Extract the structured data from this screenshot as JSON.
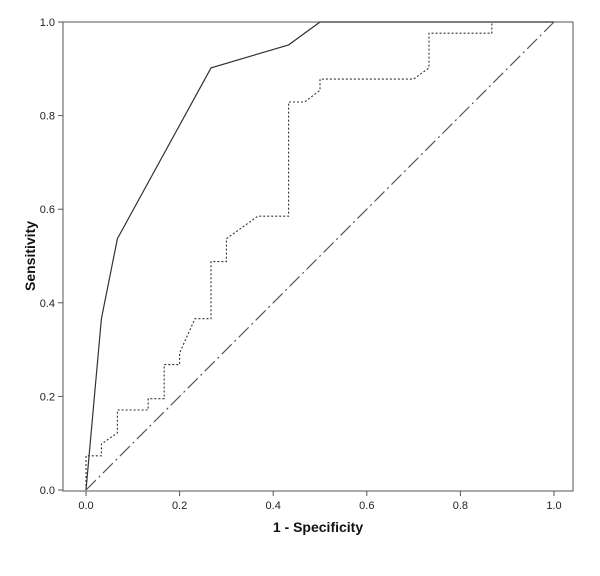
{
  "chart_data": {
    "type": "line",
    "title": "",
    "xlabel": "1 - Specificity",
    "ylabel": "Sensitivity",
    "xlim": [
      0.0,
      1.0
    ],
    "ylim": [
      0.0,
      1.0
    ],
    "x_ticks": [
      "0.0",
      "0.2",
      "0.4",
      "0.6",
      "0.8",
      "1.0"
    ],
    "y_ticks": [
      "0.0",
      "0.2",
      "0.4",
      "0.6",
      "0.8",
      "1.0"
    ],
    "grid": false,
    "legend": "none",
    "series": [
      {
        "style": "solid",
        "color": "#333333",
        "points": [
          [
            0.0,
            0.0
          ],
          [
            0.033,
            0.366
          ],
          [
            0.067,
            0.537
          ],
          [
            0.267,
            0.902
          ],
          [
            0.433,
            0.951
          ],
          [
            0.5,
            1.0
          ],
          [
            1.0,
            1.0
          ]
        ]
      },
      {
        "style": "dotted",
        "color": "#333333",
        "points": [
          [
            0.0,
            0.0
          ],
          [
            0.0,
            0.073
          ],
          [
            0.033,
            0.073
          ],
          [
            0.033,
            0.098
          ],
          [
            0.067,
            0.122
          ],
          [
            0.067,
            0.171
          ],
          [
            0.133,
            0.171
          ],
          [
            0.133,
            0.195
          ],
          [
            0.167,
            0.195
          ],
          [
            0.167,
            0.268
          ],
          [
            0.2,
            0.268
          ],
          [
            0.2,
            0.293
          ],
          [
            0.233,
            0.366
          ],
          [
            0.267,
            0.366
          ],
          [
            0.267,
            0.488
          ],
          [
            0.3,
            0.488
          ],
          [
            0.3,
            0.537
          ],
          [
            0.367,
            0.585
          ],
          [
            0.433,
            0.585
          ],
          [
            0.433,
            0.829
          ],
          [
            0.467,
            0.829
          ],
          [
            0.5,
            0.854
          ],
          [
            0.5,
            0.878
          ],
          [
            0.7,
            0.878
          ],
          [
            0.733,
            0.902
          ],
          [
            0.733,
            0.976
          ],
          [
            0.867,
            0.976
          ],
          [
            0.867,
            1.0
          ],
          [
            1.0,
            1.0
          ]
        ]
      },
      {
        "style": "dash-dot",
        "color": "#555555",
        "points": [
          [
            0.0,
            0.0
          ],
          [
            1.0,
            1.0
          ]
        ]
      }
    ]
  }
}
